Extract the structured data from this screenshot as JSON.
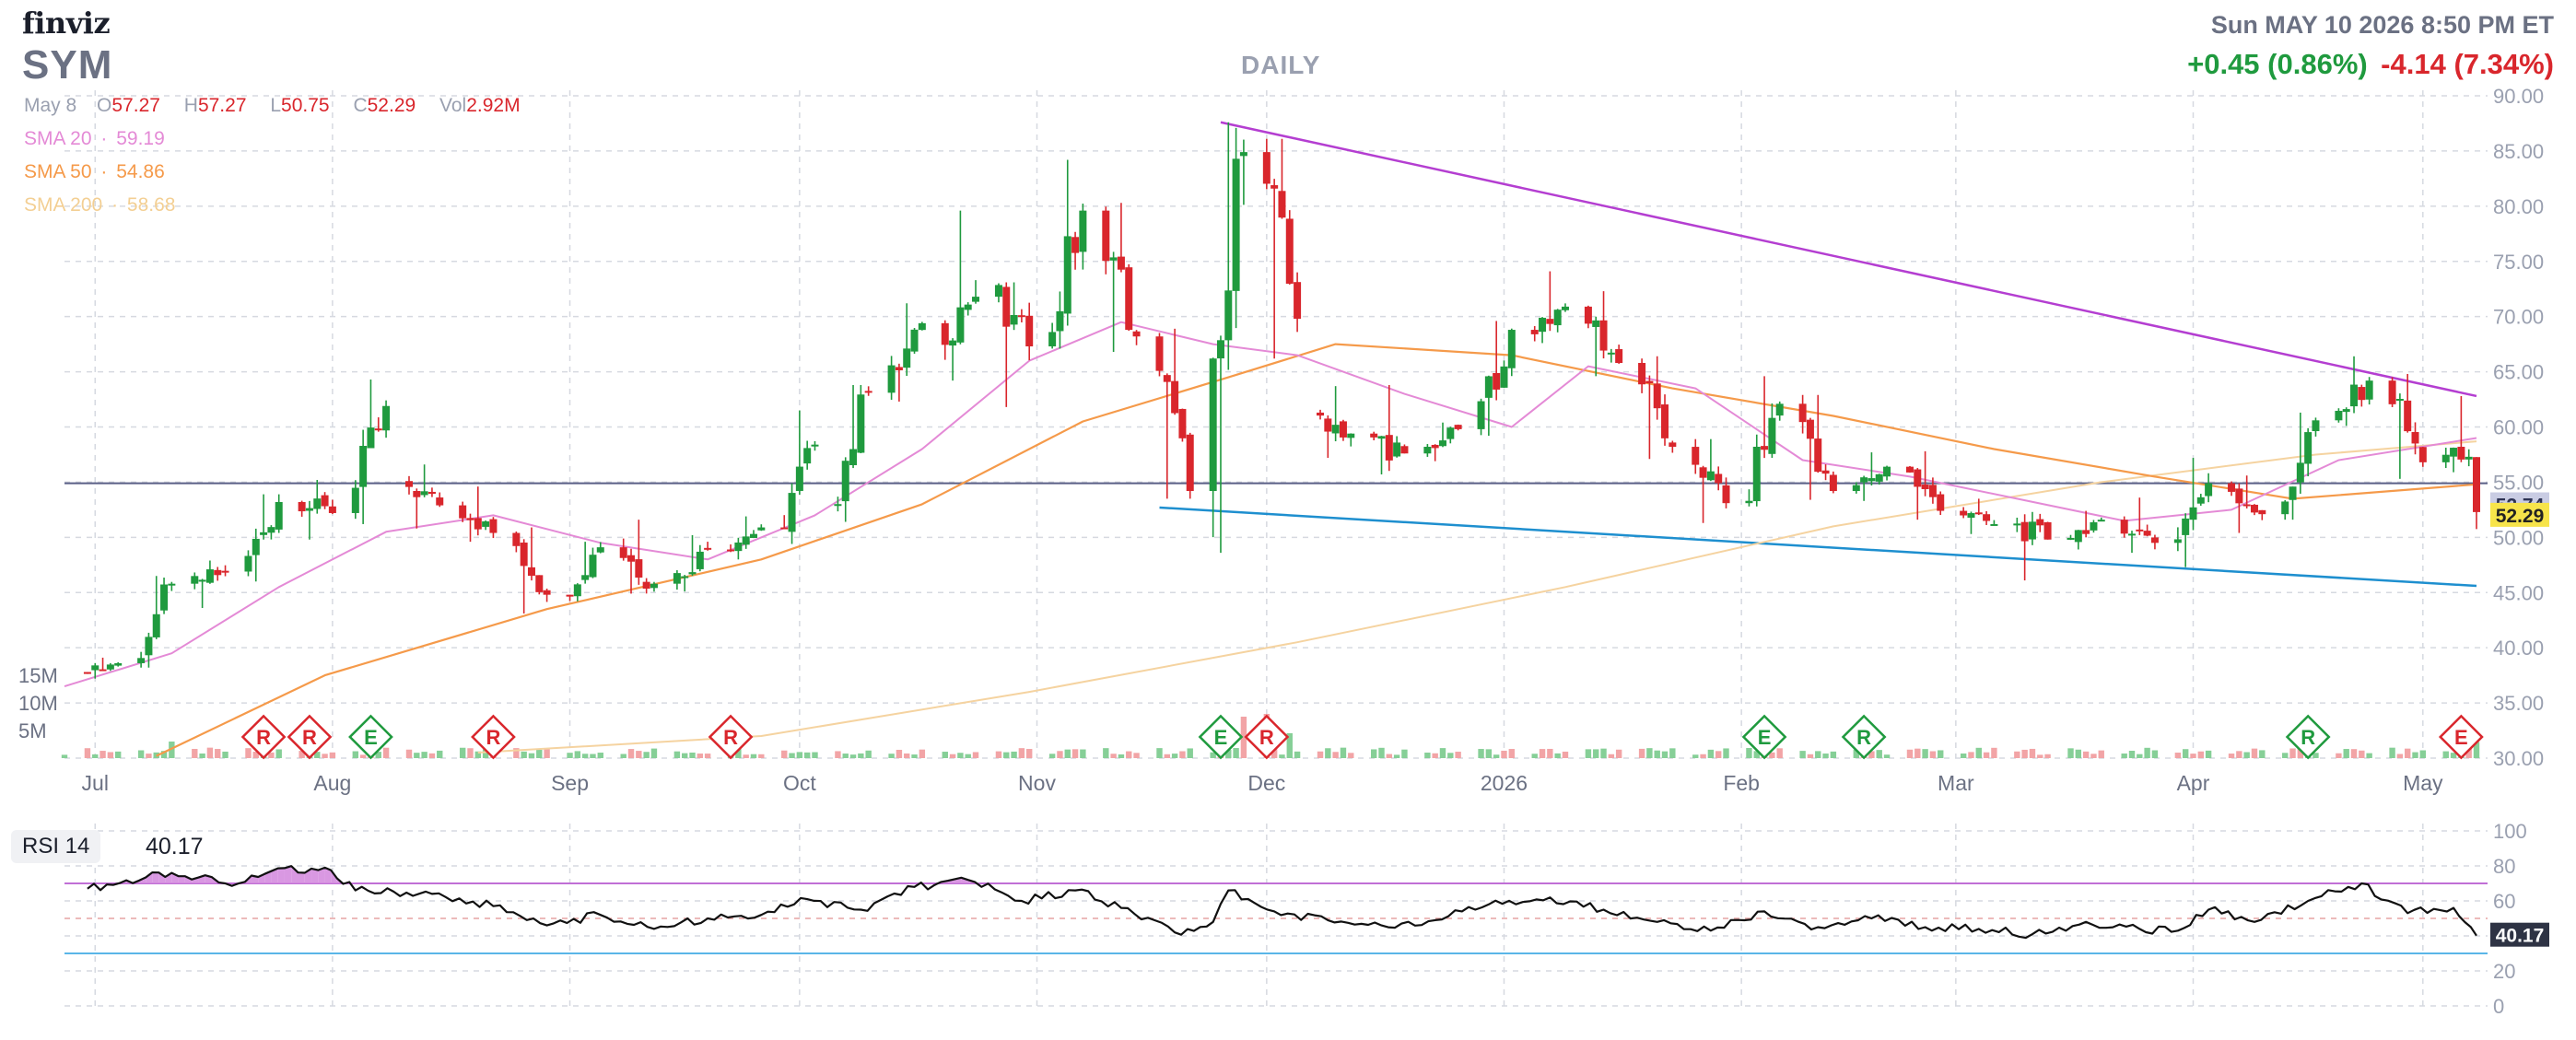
{
  "header": {
    "brand": "finviz",
    "ticker": "SYM",
    "timeframe": "DAILY",
    "datetime": "Sun MAY 10 2026 8:50 PM ET",
    "change_up": "+0.45 (0.86%)",
    "change_down": "-4.14 (7.34%)"
  },
  "ohlc": {
    "date": "May 8",
    "o_label": "O",
    "o": "57.27",
    "h_label": "H",
    "h": "57.27",
    "l_label": "L",
    "l": "50.75",
    "c_label": "C",
    "c": "52.29",
    "vol_label": "Vol",
    "vol": "2.92M"
  },
  "sma": [
    {
      "label": "SMA 20",
      "sep": "·",
      "value": "59.19",
      "color": "#e48ad6"
    },
    {
      "label": "SMA 50",
      "sep": "·",
      "value": "54.86",
      "color": "#f59a4a"
    },
    {
      "label": "SMA 200",
      "sep": "·",
      "value": "58.68",
      "color": "#f7d7a3"
    }
  ],
  "colors": {
    "up": "#1f9a3e",
    "down": "#d9262c",
    "vol_up": "#86cf97",
    "vol_down": "#f2a4a6",
    "upper_trend": "#b43ed1",
    "lower_trend": "#1e8fcf",
    "hline": "#5a5f86",
    "rsi_band_upper": "#c06fd6",
    "rsi_band_lower": "#5ab6e8",
    "rsi_fill": "#d58ddf"
  },
  "price_tags": [
    {
      "value": "52.74",
      "bg": "#c9cce3",
      "fg": "#2e3354"
    },
    {
      "value": "52.29",
      "bg": "#f7e44a",
      "fg": "#222222"
    }
  ],
  "volume_labels": [
    "15M",
    "10M",
    "5M"
  ],
  "rsi": {
    "label": "RSI 14",
    "value": "40.17",
    "tag": "40.17",
    "ticks": [
      "100",
      "80",
      "60",
      "40",
      "20",
      "0"
    ]
  },
  "events": [
    {
      "type": "R",
      "date": "2025-07-23",
      "kind": "down"
    },
    {
      "type": "R",
      "date": "2025-07-29",
      "kind": "down"
    },
    {
      "type": "E",
      "date": "2025-08-06",
      "kind": "up"
    },
    {
      "type": "R",
      "date": "2025-08-22",
      "kind": "down"
    },
    {
      "type": "R",
      "date": "2025-09-22",
      "kind": "down"
    },
    {
      "type": "E",
      "date": "2025-11-25",
      "kind": "up"
    },
    {
      "type": "R",
      "date": "2025-12-01",
      "kind": "down"
    },
    {
      "type": "E",
      "date": "2026-02-04",
      "kind": "up"
    },
    {
      "type": "R",
      "date": "2026-02-17",
      "kind": "up"
    },
    {
      "type": "R",
      "date": "2026-04-16",
      "kind": "up"
    },
    {
      "type": "E",
      "date": "2026-05-06",
      "kind": "down"
    }
  ],
  "chart_data": {
    "type": "candlestick",
    "title": "SYM",
    "interval": "DAILY",
    "x_axis_labels": [
      "Jul",
      "Aug",
      "Sep",
      "Oct",
      "Nov",
      "Dec",
      "2026",
      "Feb",
      "Mar",
      "Apr",
      "May"
    ],
    "y_ticks": [
      90,
      85,
      80,
      75,
      70,
      65,
      60,
      55,
      50,
      45,
      40,
      35,
      30
    ],
    "ylim": [
      30,
      90
    ],
    "grid": true,
    "ohlc_series": [
      {
        "date": "2025-06-30",
        "open": 37.8,
        "high": 39.1,
        "low": 37.2,
        "close": 38.6
      },
      {
        "date": "2025-07-07",
        "open": 38.6,
        "high": 46.5,
        "low": 38.2,
        "close": 45.8
      },
      {
        "date": "2025-07-14",
        "open": 45.8,
        "high": 47.9,
        "low": 43.6,
        "close": 46.9
      },
      {
        "date": "2025-07-21",
        "open": 46.9,
        "high": 53.9,
        "low": 46.0,
        "close": 53.2
      },
      {
        "date": "2025-07-28",
        "open": 53.2,
        "high": 55.2,
        "low": 49.8,
        "close": 52.2
      },
      {
        "date": "2025-08-04",
        "open": 52.2,
        "high": 64.3,
        "low": 51.2,
        "close": 61.9
      },
      {
        "date": "2025-08-11",
        "open": 55.1,
        "high": 56.6,
        "low": 50.8,
        "close": 52.9
      },
      {
        "date": "2025-08-18",
        "open": 52.9,
        "high": 54.6,
        "low": 49.6,
        "close": 50.4
      },
      {
        "date": "2025-08-25",
        "open": 50.4,
        "high": 50.9,
        "low": 43.1,
        "close": 44.8
      },
      {
        "date": "2025-09-01",
        "open": 44.8,
        "high": 49.6,
        "low": 44.2,
        "close": 49.1
      },
      {
        "date": "2025-09-08",
        "open": 49.1,
        "high": 51.6,
        "low": 44.9,
        "close": 45.8
      },
      {
        "date": "2025-09-15",
        "open": 45.8,
        "high": 50.2,
        "low": 45.1,
        "close": 48.9
      },
      {
        "date": "2025-09-22",
        "open": 48.9,
        "high": 51.9,
        "low": 48.0,
        "close": 50.9
      },
      {
        "date": "2025-09-29",
        "open": 50.9,
        "high": 61.5,
        "low": 49.4,
        "close": 58.4
      },
      {
        "date": "2025-10-06",
        "open": 52.9,
        "high": 63.8,
        "low": 51.4,
        "close": 63.1
      },
      {
        "date": "2025-10-13",
        "open": 63.1,
        "high": 71.2,
        "low": 62.3,
        "close": 69.4
      },
      {
        "date": "2025-10-20",
        "open": 69.4,
        "high": 79.6,
        "low": 64.2,
        "close": 71.8
      },
      {
        "date": "2025-10-27",
        "open": 71.8,
        "high": 73.1,
        "low": 61.8,
        "close": 67.3
      },
      {
        "date": "2025-11-03",
        "open": 67.3,
        "high": 84.2,
        "low": 67.1,
        "close": 79.6
      },
      {
        "date": "2025-11-10",
        "open": 79.6,
        "high": 80.3,
        "low": 66.8,
        "close": 68.2
      },
      {
        "date": "2025-11-17",
        "open": 68.2,
        "high": 68.9,
        "low": 53.5,
        "close": 54.2
      },
      {
        "date": "2025-11-24",
        "open": 54.2,
        "high": 87.6,
        "low": 48.6,
        "close": 84.9
      },
      {
        "date": "2025-12-01",
        "open": 84.9,
        "high": 86.1,
        "low": 66.2,
        "close": 69.8
      },
      {
        "date": "2025-12-08",
        "open": 61.3,
        "high": 63.7,
        "low": 57.2,
        "close": 59.4
      },
      {
        "date": "2025-12-15",
        "open": 59.4,
        "high": 63.8,
        "low": 55.7,
        "close": 57.6
      },
      {
        "date": "2025-12-22",
        "open": 57.6,
        "high": 60.4,
        "low": 56.9,
        "close": 59.8
      },
      {
        "date": "2025-12-29",
        "open": 59.8,
        "high": 69.6,
        "low": 59.2,
        "close": 68.8
      },
      {
        "date": "2026-01-05",
        "open": 68.8,
        "high": 74.1,
        "low": 67.6,
        "close": 70.9
      },
      {
        "date": "2026-01-12",
        "open": 70.9,
        "high": 72.3,
        "low": 64.6,
        "close": 65.8
      },
      {
        "date": "2026-01-19",
        "open": 65.8,
        "high": 66.4,
        "low": 57.1,
        "close": 58.2
      },
      {
        "date": "2026-01-26",
        "open": 58.2,
        "high": 58.9,
        "low": 51.3,
        "close": 53.1
      },
      {
        "date": "2026-02-02",
        "open": 53.1,
        "high": 64.6,
        "low": 52.8,
        "close": 62.1
      },
      {
        "date": "2026-02-09",
        "open": 62.1,
        "high": 62.9,
        "low": 53.4,
        "close": 54.2
      },
      {
        "date": "2026-02-16",
        "open": 54.2,
        "high": 57.7,
        "low": 53.3,
        "close": 56.4
      },
      {
        "date": "2026-02-23",
        "open": 56.4,
        "high": 57.8,
        "low": 51.6,
        "close": 52.4
      },
      {
        "date": "2026-03-02",
        "open": 52.4,
        "high": 53.5,
        "low": 50.3,
        "close": 51.2
      },
      {
        "date": "2026-03-09",
        "open": 51.2,
        "high": 52.3,
        "low": 46.1,
        "close": 49.8
      },
      {
        "date": "2026-03-16",
        "open": 49.8,
        "high": 52.4,
        "low": 48.9,
        "close": 51.6
      },
      {
        "date": "2026-03-23",
        "open": 51.6,
        "high": 53.6,
        "low": 48.6,
        "close": 49.5
      },
      {
        "date": "2026-03-30",
        "open": 49.5,
        "high": 57.2,
        "low": 47.3,
        "close": 54.9
      },
      {
        "date": "2026-04-06",
        "open": 54.9,
        "high": 55.6,
        "low": 50.4,
        "close": 52.1
      },
      {
        "date": "2026-04-13",
        "open": 52.1,
        "high": 61.3,
        "low": 51.6,
        "close": 60.6
      },
      {
        "date": "2026-04-20",
        "open": 60.6,
        "high": 66.4,
        "low": 60.1,
        "close": 64.2
      },
      {
        "date": "2026-04-27",
        "open": 64.2,
        "high": 64.8,
        "low": 55.3,
        "close": 56.8
      },
      {
        "date": "2026-05-04",
        "open": 56.8,
        "high": 62.8,
        "low": 55.9,
        "close": 57.3
      },
      {
        "date": "2026-05-08",
        "open": 57.27,
        "high": 57.27,
        "low": 50.75,
        "close": 52.29
      }
    ],
    "sma20": [
      [
        "2025-06-27",
        36.5
      ],
      [
        "2025-07-11",
        39.5
      ],
      [
        "2025-07-25",
        45.5
      ],
      [
        "2025-08-08",
        50.5
      ],
      [
        "2025-08-22",
        52.0
      ],
      [
        "2025-09-05",
        49.5
      ],
      [
        "2025-09-19",
        48.0
      ],
      [
        "2025-10-03",
        52.0
      ],
      [
        "2025-10-17",
        58.0
      ],
      [
        "2025-10-31",
        66.0
      ],
      [
        "2025-11-12",
        69.5
      ],
      [
        "2025-11-24",
        67.5
      ],
      [
        "2025-12-05",
        66.5
      ],
      [
        "2025-12-19",
        63.0
      ],
      [
        "2026-01-02",
        60.0
      ],
      [
        "2026-01-12",
        65.5
      ],
      [
        "2026-01-26",
        63.5
      ],
      [
        "2026-02-09",
        57.0
      ],
      [
        "2026-02-23",
        55.5
      ],
      [
        "2026-03-09",
        53.5
      ],
      [
        "2026-03-23",
        51.5
      ],
      [
        "2026-04-06",
        52.5
      ],
      [
        "2026-04-20",
        57.0
      ],
      [
        "2026-05-08",
        59.0
      ]
    ],
    "sma50": [
      [
        "2025-07-09",
        30.2
      ],
      [
        "2025-07-31",
        37.5
      ],
      [
        "2025-08-29",
        43.5
      ],
      [
        "2025-09-26",
        48.0
      ],
      [
        "2025-10-17",
        53.0
      ],
      [
        "2025-11-07",
        60.5
      ],
      [
        "2025-11-26",
        64.5
      ],
      [
        "2025-12-10",
        67.5
      ],
      [
        "2026-01-02",
        66.5
      ],
      [
        "2026-01-23",
        63.5
      ],
      [
        "2026-02-13",
        61.0
      ],
      [
        "2026-03-06",
        58.0
      ],
      [
        "2026-03-27",
        55.5
      ],
      [
        "2026-04-14",
        53.5
      ],
      [
        "2026-05-08",
        54.8
      ]
    ],
    "sma200": [
      [
        "2025-08-20",
        30.5
      ],
      [
        "2025-09-26",
        32.0
      ],
      [
        "2025-10-31",
        36.0
      ],
      [
        "2025-12-05",
        40.5
      ],
      [
        "2026-01-09",
        45.5
      ],
      [
        "2026-02-13",
        51.0
      ],
      [
        "2026-03-20",
        55.0
      ],
      [
        "2026-04-17",
        57.5
      ],
      [
        "2026-05-08",
        58.7
      ]
    ],
    "upper_trendline": [
      [
        "2025-11-25",
        87.6
      ],
      [
        "2026-05-08",
        62.8
      ]
    ],
    "lower_trendline": [
      [
        "2025-11-17",
        52.7
      ],
      [
        "2026-05-08",
        45.6
      ]
    ],
    "horizontal_level": 54.9,
    "volume_ylim": [
      0,
      20
    ],
    "volume_labels_M": [
      15,
      10,
      5
    ],
    "volume_spikes": [
      [
        "2025-07-11",
        3.0
      ],
      [
        "2025-08-06",
        3.5
      ],
      [
        "2025-11-25",
        6.5
      ],
      [
        "2025-11-28",
        7.5
      ],
      [
        "2025-12-01",
        8.0
      ],
      [
        "2025-12-02",
        6.0
      ],
      [
        "2025-12-04",
        4.5
      ],
      [
        "2026-05-07",
        2.5
      ],
      [
        "2026-05-08",
        2.92
      ]
    ],
    "rsi_ylim": [
      0,
      100
    ],
    "rsi_bands": [
      70,
      30
    ],
    "rsi_ticks": [
      100,
      80,
      60,
      40,
      20,
      0
    ],
    "rsi_series": [
      [
        "2025-06-30",
        67
      ],
      [
        "2025-07-11",
        76
      ],
      [
        "2025-07-18",
        70
      ],
      [
        "2025-07-24",
        77
      ],
      [
        "2025-07-31",
        79
      ],
      [
        "2025-08-04",
        66
      ],
      [
        "2025-08-14",
        64
      ],
      [
        "2025-08-22",
        57
      ],
      [
        "2025-08-29",
        46
      ],
      [
        "2025-09-05",
        52
      ],
      [
        "2025-09-12",
        44
      ],
      [
        "2025-09-19",
        50
      ],
      [
        "2025-09-26",
        52
      ],
      [
        "2025-10-02",
        61
      ],
      [
        "2025-10-09",
        55
      ],
      [
        "2025-10-16",
        68
      ],
      [
        "2025-10-23",
        72
      ],
      [
        "2025-10-30",
        60
      ],
      [
        "2025-11-06",
        66
      ],
      [
        "2025-11-12",
        56
      ],
      [
        "2025-11-19",
        42
      ],
      [
        "2025-11-24",
        48
      ],
      [
        "2025-11-26",
        66
      ],
      [
        "2025-12-02",
        54
      ],
      [
        "2025-12-09",
        49
      ],
      [
        "2025-12-16",
        46
      ],
      [
        "2025-12-23",
        49
      ],
      [
        "2025-12-30",
        58
      ],
      [
        "2026-01-07",
        62
      ],
      [
        "2026-01-14",
        55
      ],
      [
        "2026-01-21",
        48
      ],
      [
        "2026-01-28",
        43
      ],
      [
        "2026-02-04",
        54
      ],
      [
        "2026-02-11",
        45
      ],
      [
        "2026-02-18",
        50
      ],
      [
        "2026-02-25",
        45
      ],
      [
        "2026-03-04",
        44
      ],
      [
        "2026-03-11",
        41
      ],
      [
        "2026-03-18",
        48
      ],
      [
        "2026-03-25",
        44
      ],
      [
        "2026-03-30",
        43
      ],
      [
        "2026-04-03",
        55
      ],
      [
        "2026-04-09",
        48
      ],
      [
        "2026-04-16",
        60
      ],
      [
        "2026-04-23",
        70
      ],
      [
        "2026-04-29",
        53
      ],
      [
        "2026-05-05",
        56
      ],
      [
        "2026-05-08",
        40.17
      ]
    ]
  }
}
